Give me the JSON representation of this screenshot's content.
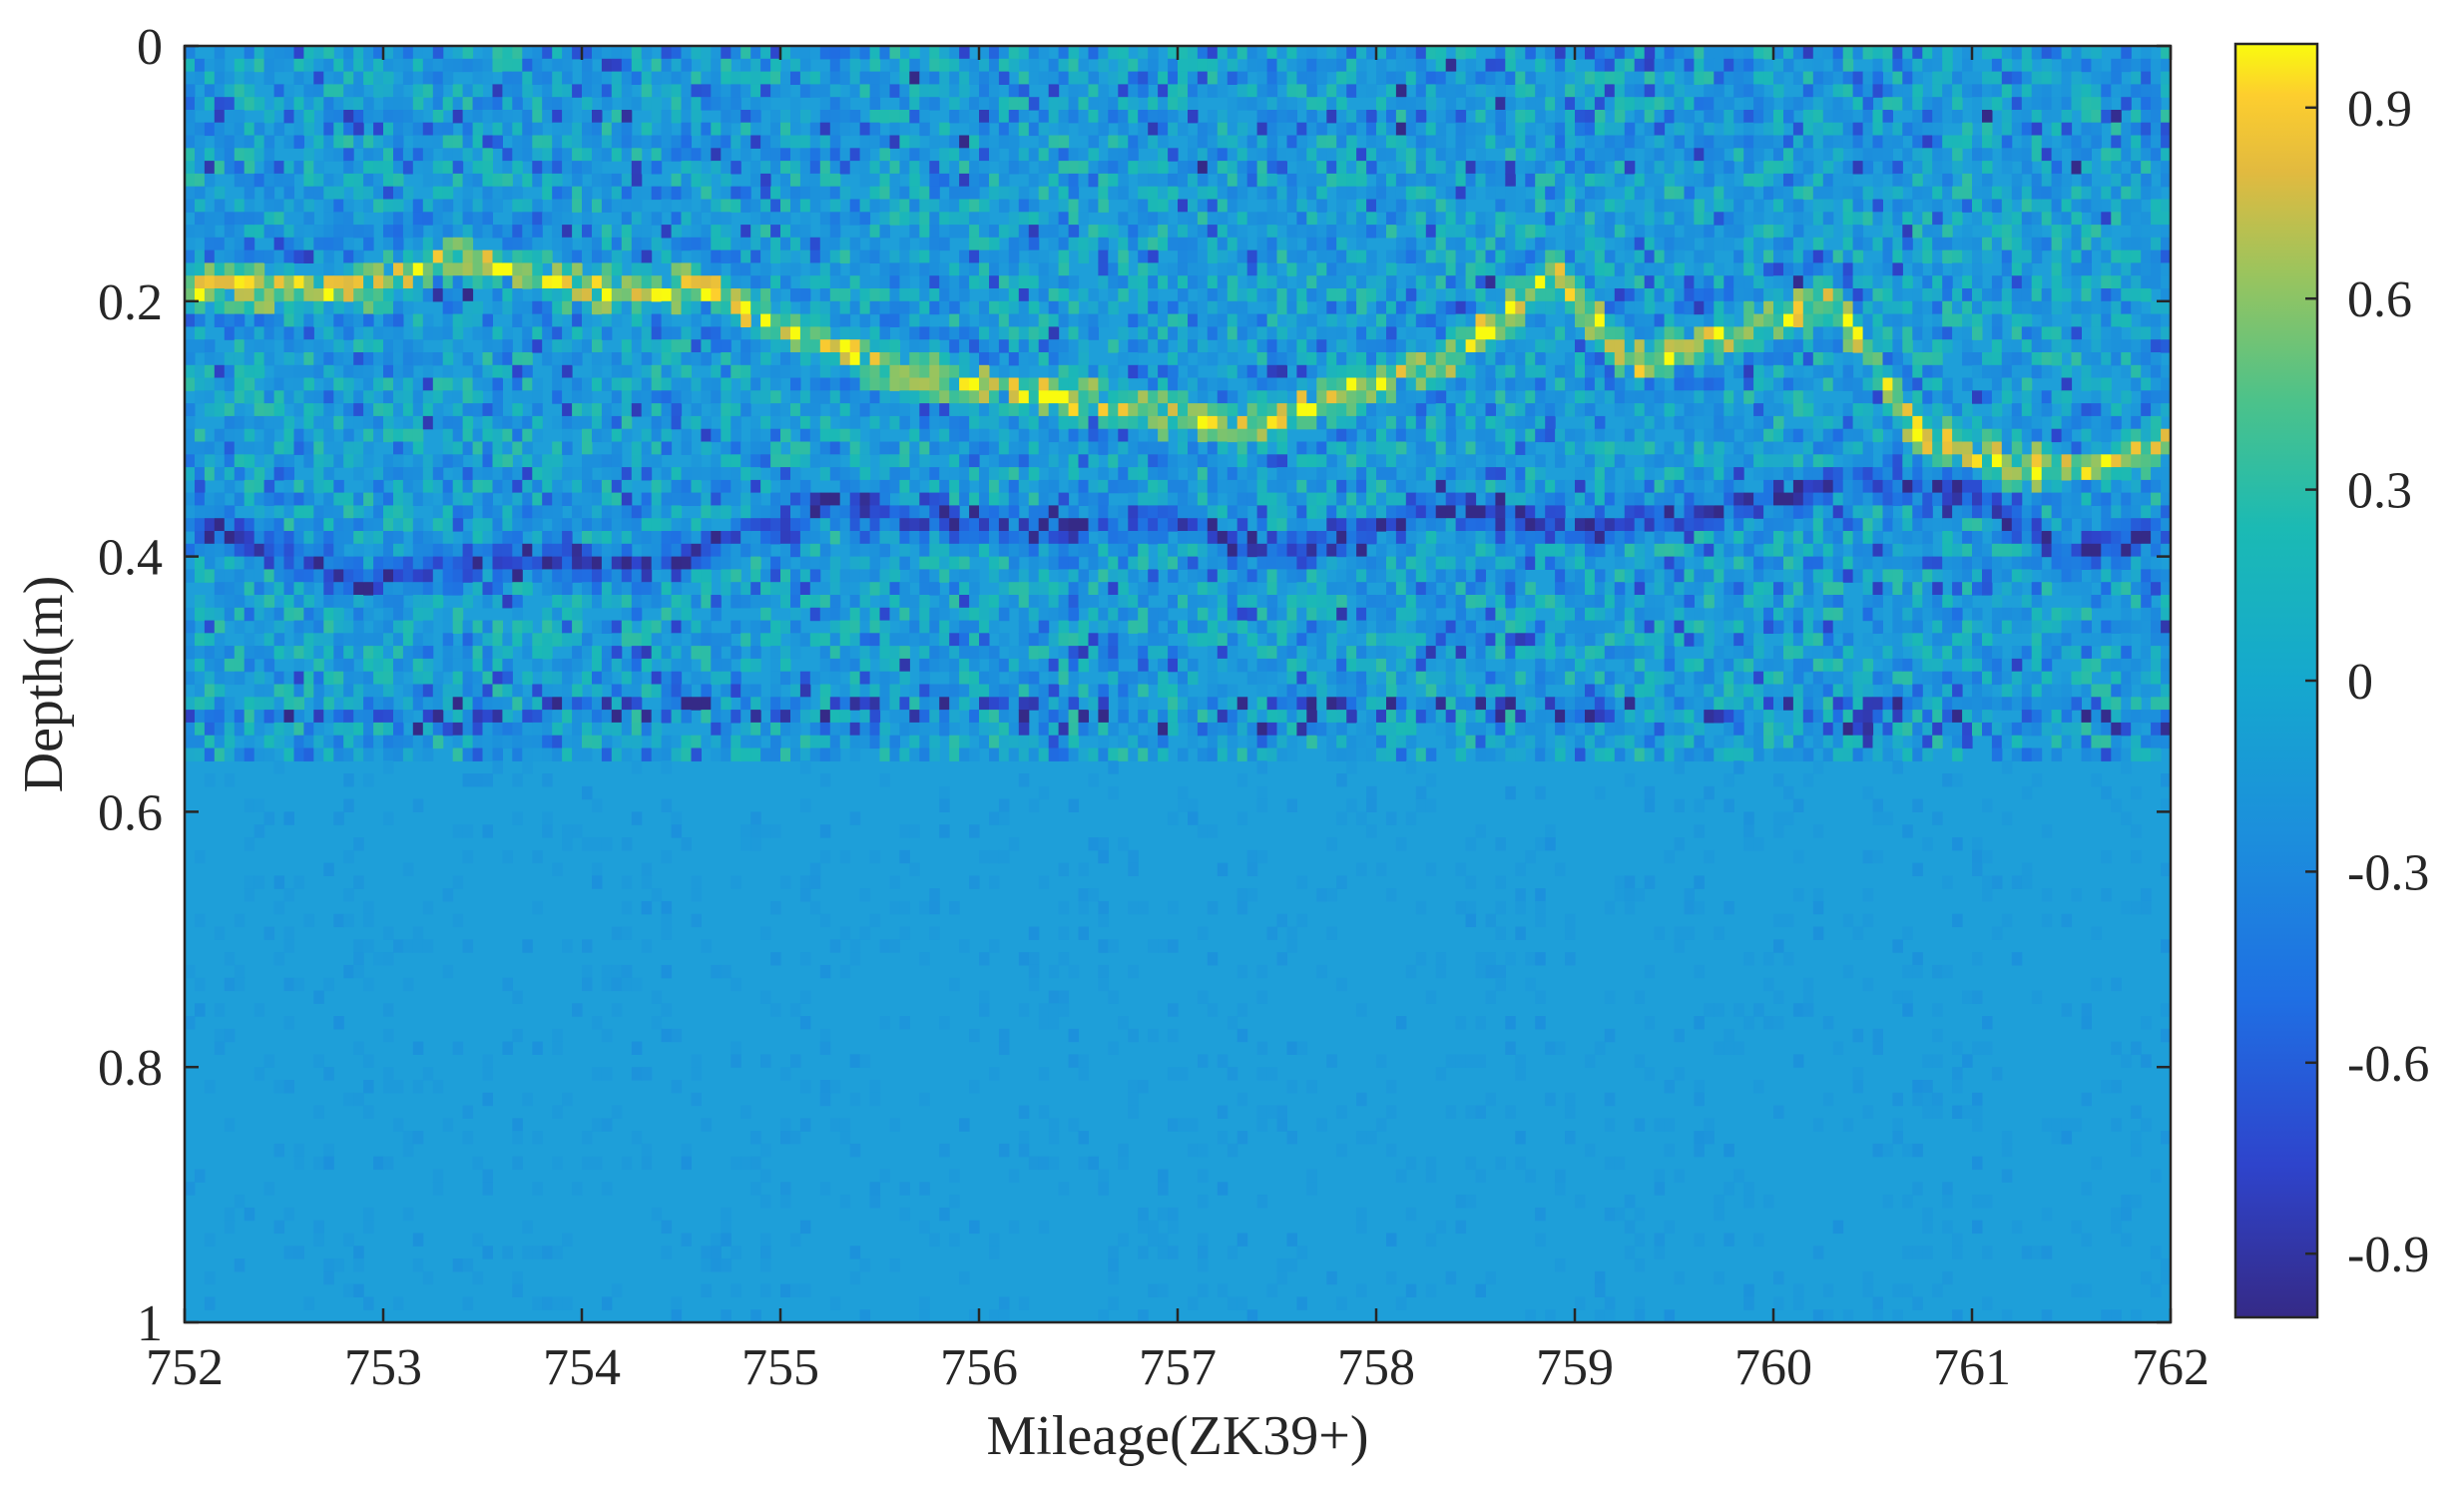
{
  "chart_data": {
    "type": "heatmap",
    "title": "",
    "xlabel": "Mileage(ZK39+)",
    "ylabel": "Depth(m)",
    "xlim": [
      752,
      762
    ],
    "ylim": [
      0,
      1
    ],
    "y_reversed": true,
    "x_ticks": [
      "752",
      "753",
      "754",
      "755",
      "756",
      "757",
      "758",
      "759",
      "760",
      "761",
      "762"
    ],
    "y_ticks": [
      "0",
      "0.2",
      "0.4",
      "0.6",
      "0.8",
      "1"
    ],
    "colorbar": {
      "colormap": "parula",
      "range": [
        -1,
        1
      ],
      "ticks": [
        "0.9",
        "0.6",
        "0.3",
        "0",
        "-0.3",
        "-0.6",
        "-0.9"
      ]
    },
    "colors": {
      "background": "#1E9FD9",
      "strong_positive": "#F9FB0E",
      "strong_negative": "#3E26A8",
      "axis": "#262626"
    },
    "reflection_horizons": [
      {
        "label": "upper interface (positive, yellow)",
        "points": [
          [
            752.95,
            0.19
          ],
          [
            753.3,
            0.165
          ],
          [
            753.7,
            0.18
          ],
          [
            754.2,
            0.195
          ],
          [
            754.6,
            0.19
          ],
          [
            755.0,
            0.22
          ],
          [
            755.5,
            0.25
          ],
          [
            756.1,
            0.27
          ],
          [
            756.7,
            0.28
          ],
          [
            757.3,
            0.3
          ],
          [
            757.8,
            0.275
          ],
          [
            758.3,
            0.25
          ],
          [
            758.9,
            0.18
          ],
          [
            759.3,
            0.25
          ],
          [
            759.9,
            0.22
          ],
          [
            760.3,
            0.2
          ],
          [
            760.7,
            0.3
          ],
          [
            761.2,
            0.33
          ],
          [
            761.6,
            0.33
          ],
          [
            762.0,
            0.31
          ]
        ]
      },
      {
        "label": "lower interface (negative, dark blue)",
        "points": [
          [
            752.0,
            0.37
          ],
          [
            752.9,
            0.42
          ],
          [
            753.6,
            0.4
          ],
          [
            754.3,
            0.41
          ],
          [
            755.2,
            0.36
          ],
          [
            756.2,
            0.38
          ],
          [
            757.0,
            0.37
          ],
          [
            757.6,
            0.4
          ],
          [
            758.3,
            0.36
          ],
          [
            759.0,
            0.38
          ],
          [
            759.8,
            0.36
          ],
          [
            760.4,
            0.34
          ],
          [
            761.0,
            0.35
          ],
          [
            761.5,
            0.4
          ],
          [
            762.0,
            0.38
          ]
        ]
      },
      {
        "label": "deep weak layer (negative)",
        "points": [
          [
            752.0,
            0.53
          ],
          [
            753.0,
            0.53
          ],
          [
            754.0,
            0.52
          ],
          [
            755.0,
            0.52
          ],
          [
            756.0,
            0.52
          ],
          [
            757.0,
            0.53
          ],
          [
            758.0,
            0.52
          ],
          [
            759.0,
            0.52
          ],
          [
            760.0,
            0.52
          ],
          [
            761.0,
            0.53
          ],
          [
            762.0,
            0.53
          ]
        ]
      }
    ]
  }
}
